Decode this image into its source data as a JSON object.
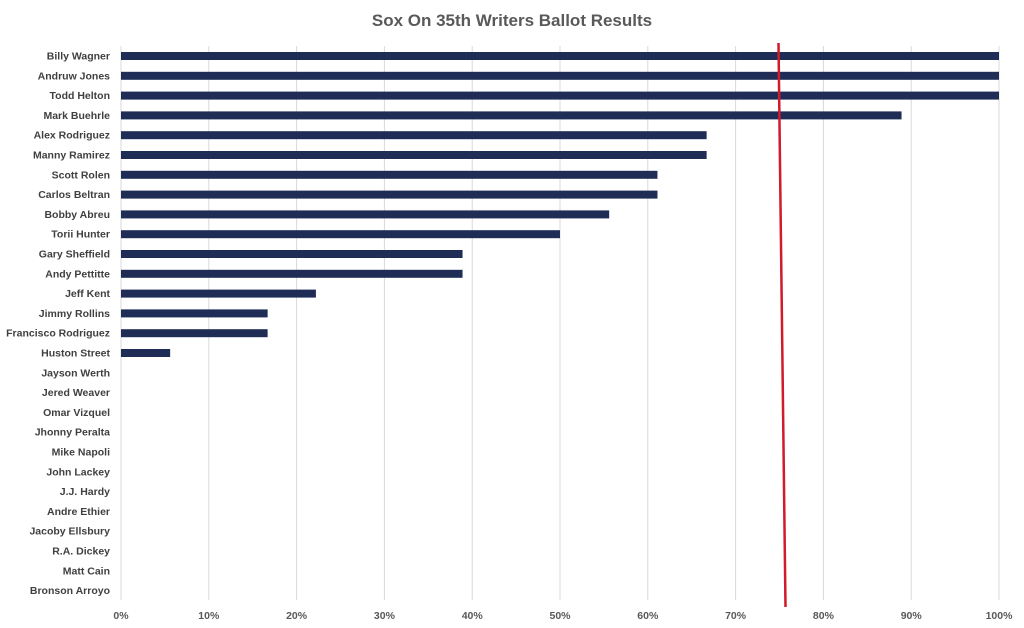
{
  "chart_data": {
    "type": "bar",
    "orientation": "horizontal",
    "title": "Sox On 35th Writers Ballot Results",
    "categories": [
      "Billy Wagner",
      "Andruw Jones",
      "Todd Helton",
      "Mark Buehrle",
      "Alex Rodriguez",
      "Manny Ramirez",
      "Scott Rolen",
      "Carlos Beltran",
      "Bobby Abreu",
      "Torii Hunter",
      "Gary Sheffield",
      "Andy Pettitte",
      "Jeff Kent",
      "Jimmy Rollins",
      "Francisco Rodriguez",
      "Huston Street",
      "Jayson Werth",
      "Jered Weaver",
      "Omar Vizquel",
      "Jhonny Peralta",
      "Mike Napoli",
      "John Lackey",
      "J.J. Hardy",
      "Andre Ethier",
      "Jacoby Ellsbury",
      "R.A. Dickey",
      "Matt Cain",
      "Bronson Arroyo"
    ],
    "values": [
      100,
      100,
      100,
      88.9,
      66.7,
      66.7,
      61.1,
      61.1,
      55.6,
      50.0,
      38.9,
      38.9,
      22.2,
      16.7,
      16.7,
      5.6,
      0,
      0,
      0,
      0,
      0,
      0,
      0,
      0,
      0,
      0,
      0,
      0
    ],
    "xlim": [
      0,
      100
    ],
    "x_ticks": [
      "0%",
      "10%",
      "20%",
      "30%",
      "40%",
      "50%",
      "60%",
      "70%",
      "80%",
      "90%",
      "100%"
    ],
    "threshold": 75,
    "grid": true,
    "colors": {
      "bar": "#1f2d56",
      "threshold_line": "#d11a2a",
      "grid": "#d9d9d9"
    }
  }
}
